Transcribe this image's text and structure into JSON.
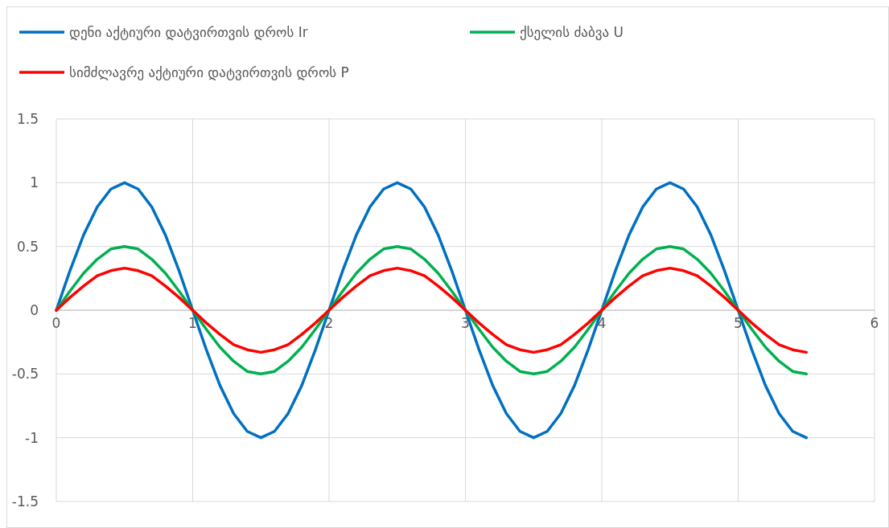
{
  "chart_data": {
    "type": "line",
    "x": [
      0,
      0.1,
      0.2,
      0.3,
      0.4,
      0.5,
      0.6,
      0.7,
      0.8,
      0.9,
      1,
      1.1,
      1.2,
      1.3,
      1.4,
      1.5,
      1.6,
      1.7,
      1.8,
      1.9,
      2,
      2.1,
      2.2,
      2.3,
      2.4,
      2.5,
      2.6,
      2.7,
      2.8,
      2.9,
      3,
      3.1,
      3.2,
      3.3,
      3.4,
      3.5,
      3.6,
      3.7,
      3.8,
      3.9,
      4,
      4.1,
      4.2,
      4.3,
      4.4,
      4.5,
      4.6,
      4.7,
      4.8,
      4.9,
      5,
      5.1,
      5.2,
      5.3,
      5.4,
      5.5
    ],
    "series": [
      {
        "name": "დენი აქტიური დატვირთვის დროს Ir",
        "color": "#0070c0",
        "values": [
          0,
          0.31,
          0.59,
          0.81,
          0.95,
          1,
          0.95,
          0.81,
          0.59,
          0.31,
          0,
          -0.31,
          -0.59,
          -0.81,
          -0.95,
          -1,
          -0.95,
          -0.81,
          -0.59,
          -0.31,
          0,
          0.31,
          0.59,
          0.81,
          0.95,
          1,
          0.95,
          0.81,
          0.59,
          0.31,
          0,
          -0.31,
          -0.59,
          -0.81,
          -0.95,
          -1,
          -0.95,
          -0.81,
          -0.59,
          -0.31,
          0,
          0.31,
          0.59,
          0.81,
          0.95,
          1,
          0.95,
          0.81,
          0.59,
          0.31,
          0,
          -0.31,
          -0.59,
          -0.81,
          -0.95,
          -1
        ]
      },
      {
        "name": "ქსელის ძაბვა U",
        "color": "#00b050",
        "values": [
          0,
          0.15,
          0.29,
          0.4,
          0.48,
          0.5,
          0.48,
          0.4,
          0.29,
          0.15,
          0,
          -0.15,
          -0.29,
          -0.4,
          -0.48,
          -0.5,
          -0.48,
          -0.4,
          -0.29,
          -0.15,
          0,
          0.15,
          0.29,
          0.4,
          0.48,
          0.5,
          0.48,
          0.4,
          0.29,
          0.15,
          0,
          -0.15,
          -0.29,
          -0.4,
          -0.48,
          -0.5,
          -0.48,
          -0.4,
          -0.29,
          -0.15,
          0,
          0.15,
          0.29,
          0.4,
          0.48,
          0.5,
          0.48,
          0.4,
          0.29,
          0.15,
          0,
          -0.15,
          -0.29,
          -0.4,
          -0.48,
          -0.5
        ]
      },
      {
        "name": "სიმძლავრე აქტიური დატვირთვის დროს P",
        "color": "#ff0000",
        "values": [
          0,
          0.1,
          0.19,
          0.27,
          0.31,
          0.33,
          0.31,
          0.27,
          0.19,
          0.1,
          0,
          -0.1,
          -0.19,
          -0.27,
          -0.31,
          -0.33,
          -0.31,
          -0.27,
          -0.19,
          -0.1,
          0,
          0.1,
          0.19,
          0.27,
          0.31,
          0.33,
          0.31,
          0.27,
          0.19,
          0.1,
          0,
          -0.1,
          -0.19,
          -0.27,
          -0.31,
          -0.33,
          -0.31,
          -0.27,
          -0.19,
          -0.1,
          0,
          0.1,
          0.19,
          0.27,
          0.31,
          0.33,
          0.31,
          0.27,
          0.19,
          0.1,
          0,
          -0.1,
          -0.19,
          -0.27,
          -0.31,
          -0.33
        ]
      }
    ],
    "xlim": [
      0,
      6
    ],
    "xticks": [
      0,
      1,
      2,
      3,
      4,
      5,
      6
    ],
    "ylim": [
      -1.5,
      1.5
    ],
    "yticks": [
      -1.5,
      -1,
      -0.5,
      0,
      0.5,
      1,
      1.5
    ],
    "grid": true,
    "legend": "top",
    "marker": "none",
    "line_style": "solid"
  }
}
